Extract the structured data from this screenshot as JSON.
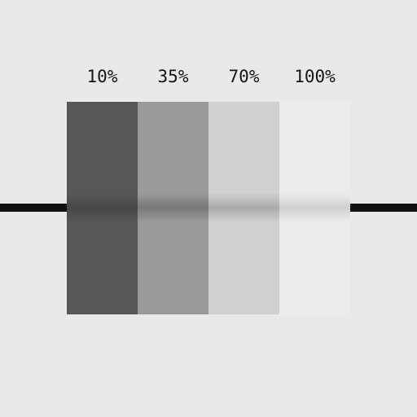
{
  "swatches": [
    {
      "label": "10%",
      "opacity": 0.1,
      "color": "#575757",
      "shade": 0.18
    },
    {
      "label": "35%",
      "opacity": 0.35,
      "color": "#9a9a9a",
      "shade": 0.22
    },
    {
      "label": "70%",
      "opacity": 0.7,
      "color": "#d0d0d0",
      "shade": 0.18
    },
    {
      "label": "100%",
      "opacity": 1.0,
      "color": "#ececec",
      "shade": 0.12
    }
  ],
  "colors": {
    "background": "#e9e9e9",
    "line": "#111111",
    "text": "#151515"
  }
}
